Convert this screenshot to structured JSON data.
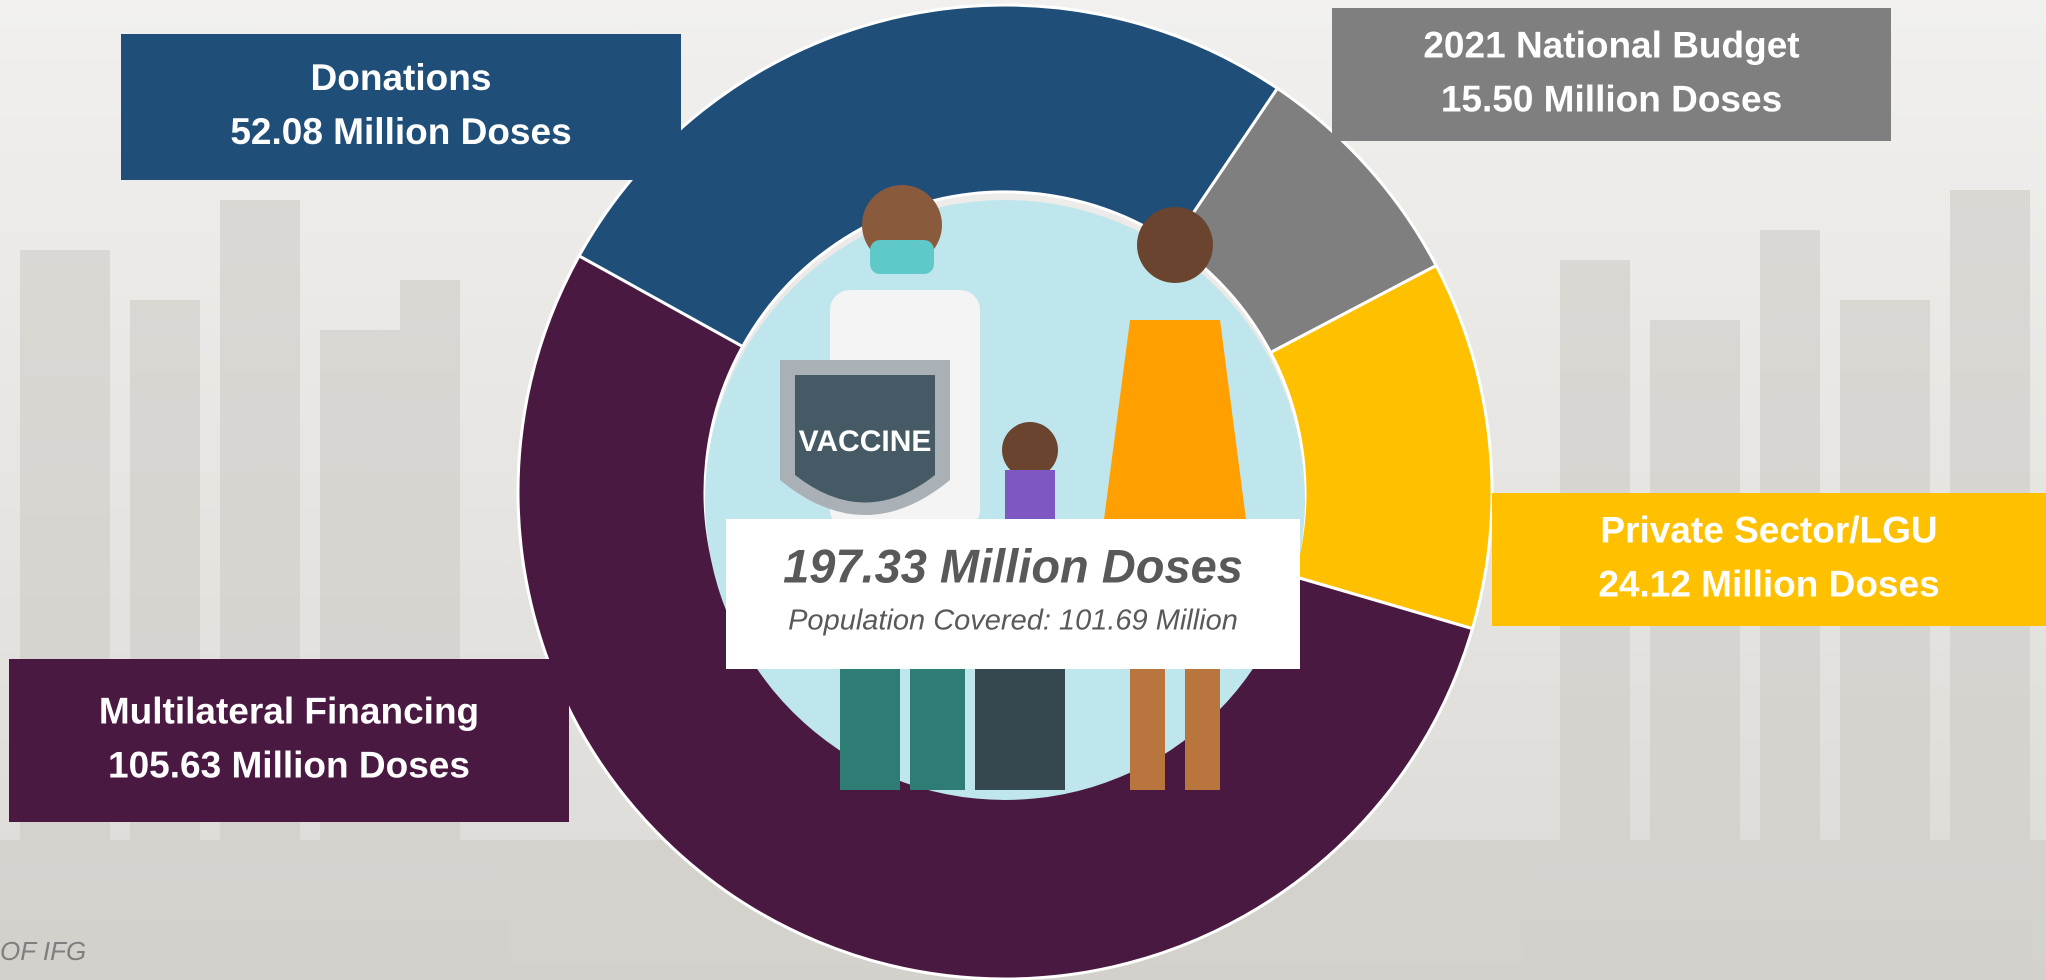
{
  "chart_data": {
    "type": "donut",
    "categories": [
      "Donations",
      "2021 National Budget",
      "Private Sector/LGU",
      "Multilateral Financing"
    ],
    "values": [
      52.08,
      15.5,
      24.12,
      105.63
    ],
    "value_labels": [
      "52.08 Million Doses",
      "15.50 Million Doses",
      "24.12 Million Doses",
      "105.63 Million Doses"
    ],
    "colors": [
      "#1f4e79",
      "#7f7f7f",
      "#ffc000",
      "#4a1942"
    ],
    "center_title": "197.33 Million Doses",
    "center_subtitle": "Population Covered: 101.69 Million",
    "source": "OF IFG"
  }
}
